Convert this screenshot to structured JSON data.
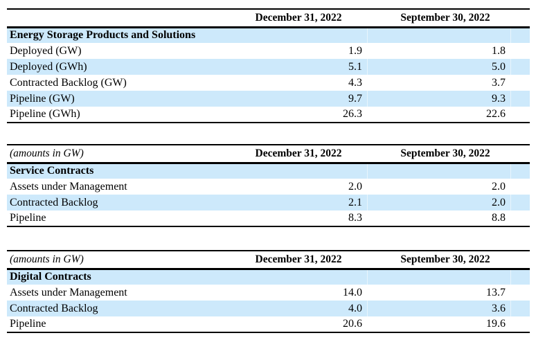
{
  "colors": {
    "stripe": "#cde9fb",
    "rule": "#000000"
  },
  "tables": [
    {
      "name": "energy-storage-products-and-solutions",
      "corner_label": "",
      "columns": [
        "December 31, 2022",
        "September 30, 2022"
      ],
      "section_header": "Energy Storage Products and Solutions",
      "rows": [
        {
          "label": "Deployed (GW)",
          "values": [
            "1.9",
            "1.8"
          ]
        },
        {
          "label": "Deployed (GWh)",
          "values": [
            "5.1",
            "5.0"
          ]
        },
        {
          "label": "Contracted Backlog (GW)",
          "values": [
            "4.3",
            "3.7"
          ]
        },
        {
          "label": "Pipeline (GW)",
          "values": [
            "9.7",
            "9.3"
          ]
        },
        {
          "label": "Pipeline (GWh)",
          "values": [
            "26.3",
            "22.6"
          ]
        }
      ]
    },
    {
      "name": "service-contracts",
      "corner_label": "(amounts in GW)",
      "columns": [
        "December 31, 2022",
        "September 30, 2022"
      ],
      "section_header": "Service Contracts",
      "rows": [
        {
          "label": "Assets under Management",
          "values": [
            "2.0",
            "2.0"
          ]
        },
        {
          "label": "Contracted Backlog",
          "values": [
            "2.1",
            "2.0"
          ]
        },
        {
          "label": "Pipeline",
          "values": [
            "8.3",
            "8.8"
          ]
        }
      ]
    },
    {
      "name": "digital-contracts",
      "corner_label": "(amounts in GW)",
      "columns": [
        "December 31, 2022",
        "September 30, 2022"
      ],
      "section_header": "Digital Contracts",
      "rows": [
        {
          "label": "Assets under Management",
          "values": [
            "14.0",
            "13.7"
          ]
        },
        {
          "label": "Contracted Backlog",
          "values": [
            "4.0",
            "3.6"
          ]
        },
        {
          "label": "Pipeline",
          "values": [
            "20.6",
            "19.6"
          ]
        }
      ]
    }
  ]
}
